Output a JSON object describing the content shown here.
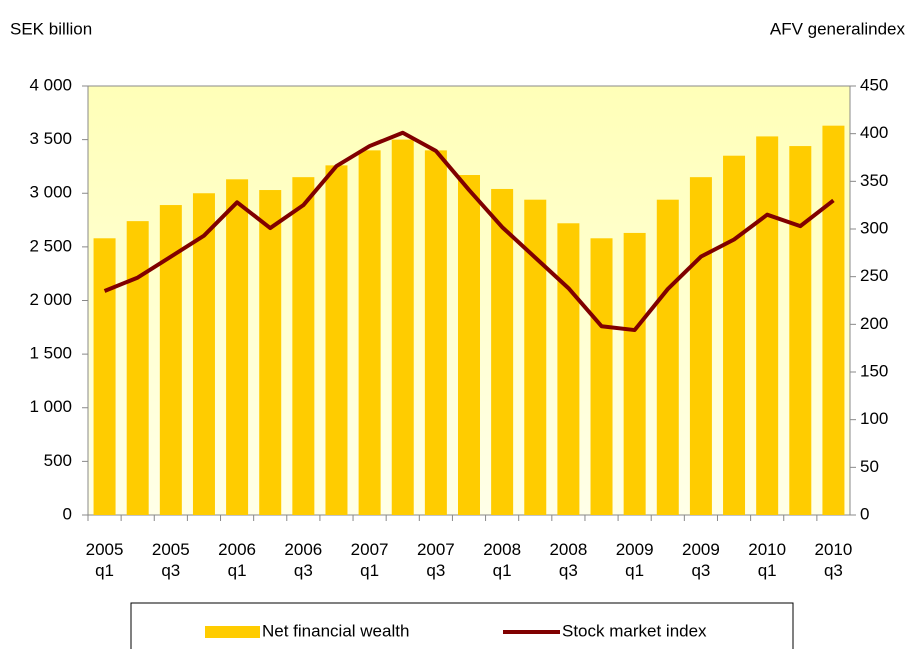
{
  "chart_data": {
    "type": "bar_line",
    "y_label": "SEK billion",
    "y2_label": "AFV generalindex",
    "categories": [
      "2005 q1",
      null,
      "2005 q3",
      null,
      "2006 q1",
      null,
      "2006 q3",
      null,
      "2007 q1",
      null,
      "2007 q3",
      null,
      "2008 q1",
      null,
      "2008 q3",
      null,
      "2009 q1",
      null,
      "2009 q3",
      null,
      "2010 q1",
      null,
      "2010 q3"
    ],
    "series": [
      {
        "name": "Net financial wealth",
        "type": "bar",
        "color": "#ffcc00",
        "values": [
          2580,
          2740,
          2890,
          3000,
          3130,
          3030,
          3150,
          3260,
          3400,
          3500,
          3400,
          3170,
          3040,
          2940,
          2720,
          2580,
          2630,
          2940,
          3150,
          3350,
          3530,
          3440,
          3630
        ]
      },
      {
        "name": "Stock market index",
        "type": "line",
        "axis": "y2",
        "color": "#800000",
        "values": [
          235,
          249,
          271,
          293,
          328,
          301,
          325,
          366,
          387,
          401,
          382,
          341,
          302,
          270,
          238,
          198,
          194,
          237,
          271,
          289,
          315,
          303,
          330
        ]
      }
    ],
    "ylim": [
      0,
      4000
    ],
    "yticks": [
      0,
      500,
      {
        "value": 1000,
        "label": "1 000"
      },
      {
        "value": 1500,
        "label": "1 500"
      },
      {
        "value": 2000,
        "label": "2 000"
      },
      {
        "value": 2500,
        "label": "2 500"
      },
      {
        "value": 3000,
        "label": "3 000"
      },
      {
        "value": 3500,
        "label": "3 500"
      },
      {
        "value": 4000,
        "label": "4 000"
      }
    ],
    "y2lim": [
      0,
      450
    ],
    "y2ticks": [
      0,
      50,
      100,
      150,
      200,
      250,
      300,
      350,
      400,
      450
    ],
    "legend": "bottom"
  }
}
